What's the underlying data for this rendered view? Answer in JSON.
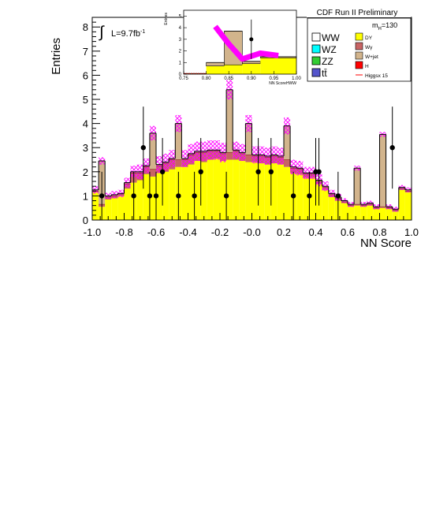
{
  "header": {
    "title": "CDF Run II Preliminary",
    "lumi_prefix": "L=9.7fb",
    "lumi_sup": "-1",
    "mass_label": "m",
    "mass_sub": "H",
    "mass_value": "=130"
  },
  "axes": {
    "xlabel": "NN Score",
    "ylabel": "Entries",
    "xticks": [
      "-1.0",
      "-0.8",
      "-0.6",
      "-0.4",
      "-0.2",
      "-0.0",
      "0.2",
      "0.4",
      "0.6",
      "0.8",
      "1.0"
    ],
    "yticks": [
      "0",
      "1",
      "2",
      "3",
      "4",
      "5",
      "6",
      "7",
      "8"
    ]
  },
  "inset": {
    "xlabel": "NN ScoreHWW",
    "ylabel": "Entries",
    "xticks": [
      "0.75",
      "0.80",
      "0.85",
      "0.90",
      "0.95",
      "1.00"
    ],
    "yticks": [
      "0",
      "1",
      "2",
      "3",
      "4",
      "5"
    ]
  },
  "legend": {
    "left": [
      {
        "label": "WW",
        "color": "#ffffff"
      },
      {
        "label": "WZ",
        "color": "#00ffff"
      },
      {
        "label": "ZZ",
        "color": "#33cc33"
      },
      {
        "label": "tt̄",
        "color": "#5555cc"
      }
    ],
    "right": [
      {
        "label": "DY",
        "color": "#ffff00"
      },
      {
        "label": "Wγ",
        "color": "#c86464"
      },
      {
        "label": "W+jet",
        "color": "#d2b48c"
      },
      {
        "label": "H",
        "color": "#ff0000"
      },
      {
        "label": "Higgsx 15",
        "color": "#ff0000",
        "line": true
      }
    ]
  },
  "chart_data": {
    "type": "bar",
    "xlim": [
      -1.0,
      1.0
    ],
    "ylim": [
      0,
      8.4
    ],
    "bin_edges_start": -1.0,
    "bin_width": 0.04,
    "dy": [
      1.15,
      0.55,
      0.85,
      0.9,
      1.0,
      1.3,
      1.55,
      1.65,
      1.9,
      1.8,
      1.95,
      2.0,
      2.1,
      2.2,
      2.2,
      2.3,
      2.45,
      2.4,
      2.5,
      2.55,
      2.45,
      2.5,
      2.5,
      2.45,
      2.4,
      2.4,
      2.35,
      2.3,
      2.35,
      2.3,
      2.2,
      1.95,
      1.9,
      1.75,
      1.75,
      1.5,
      1.25,
      0.95,
      0.8,
      0.7,
      0.55,
      0.6,
      0.55,
      0.6,
      0.45,
      0.5,
      0.45,
      0.35,
      1.25,
      1.15
    ],
    "wg": [
      0.05,
      0.1,
      0.1,
      0.1,
      0.05,
      0.2,
      0.4,
      0.3,
      0.3,
      0.3,
      0.3,
      0.35,
      0.4,
      0.3,
      0.3,
      0.4,
      0.35,
      0.4,
      0.35,
      0.3,
      0.3,
      0.3,
      0.35,
      0.3,
      0.3,
      0.25,
      0.3,
      0.3,
      0.3,
      0.3,
      0.3,
      0.2,
      0.2,
      0.15,
      0.15,
      0.1,
      0.1,
      0.1,
      0.1,
      0.05,
      0.05,
      0.05,
      0.05,
      0.05,
      0.05,
      0.05,
      0.05,
      0.05,
      0.05,
      0.05
    ],
    "wjet": [
      0.05,
      1.8,
      0.05,
      0.05,
      0.05,
      0.05,
      0.05,
      0.05,
      0.05,
      1.5,
      0.05,
      0.05,
      0.05,
      1.5,
      0.05,
      0.05,
      0.05,
      0.05,
      0.05,
      0.05,
      0.05,
      2.6,
      0.05,
      0.05,
      1.3,
      0.05,
      0.05,
      0.05,
      0.05,
      0.05,
      1.4,
      0.05,
      0.05,
      0.05,
      0.05,
      0.05,
      0.05,
      0.05,
      0.05,
      0.05,
      0.05,
      1.5,
      0.05,
      0.05,
      0.05,
      3.0,
      0.05,
      0.05,
      0.05,
      0.05
    ],
    "band": [
      0.3,
      0.3,
      0.25,
      0.3,
      0.3,
      0.4,
      0.5,
      0.6,
      0.6,
      0.6,
      0.7,
      0.7,
      0.7,
      0.7,
      0.7,
      0.8,
      0.8,
      0.8,
      0.8,
      0.8,
      0.8,
      0.8,
      0.7,
      0.7,
      0.7,
      0.7,
      0.7,
      0.7,
      0.7,
      0.7,
      0.7,
      0.6,
      0.6,
      0.5,
      0.5,
      0.5,
      0.4,
      0.3,
      0.3,
      0.2,
      0.2,
      0.2,
      0.2,
      0.2,
      0.2,
      0.2,
      0.2,
      0.2,
      0.2,
      0.2
    ],
    "data_x": [
      -0.94,
      -0.68,
      -0.74,
      -0.64,
      -0.6,
      -0.56,
      -0.46,
      -0.36,
      -0.32,
      -0.16,
      0.04,
      0.12,
      0.26,
      0.36,
      0.42,
      0.4,
      0.54,
      0.88
    ],
    "data_y": [
      1,
      3,
      1,
      1,
      1,
      2,
      1,
      1,
      2,
      1,
      2,
      2,
      1,
      1,
      2,
      2,
      1,
      3
    ],
    "data_err": [
      1,
      1.7,
      1,
      1,
      1,
      1.4,
      1,
      1,
      1.4,
      1,
      1.4,
      1.4,
      1,
      1,
      1.4,
      1.4,
      1,
      1.7
    ],
    "inset": {
      "xlim": [
        0.75,
        1.0
      ],
      "ylim": [
        0,
        5.5
      ],
      "edges": [
        0.75,
        0.8,
        0.84,
        0.88,
        0.92,
        1.0
      ],
      "dy": [
        0.05,
        0.7,
        0.8,
        0.9,
        1.4
      ],
      "wjet": [
        0.0,
        0.3,
        2.9,
        0.2,
        0.1
      ],
      "higgs_x": [
        0.82,
        0.85,
        0.88,
        0.92,
        0.96
      ],
      "higgs_y": [
        4.1,
        2.6,
        1.3,
        1.8,
        1.6
      ],
      "data": [
        {
          "x": 0.9,
          "y": 3,
          "err": 1.7
        }
      ]
    }
  }
}
